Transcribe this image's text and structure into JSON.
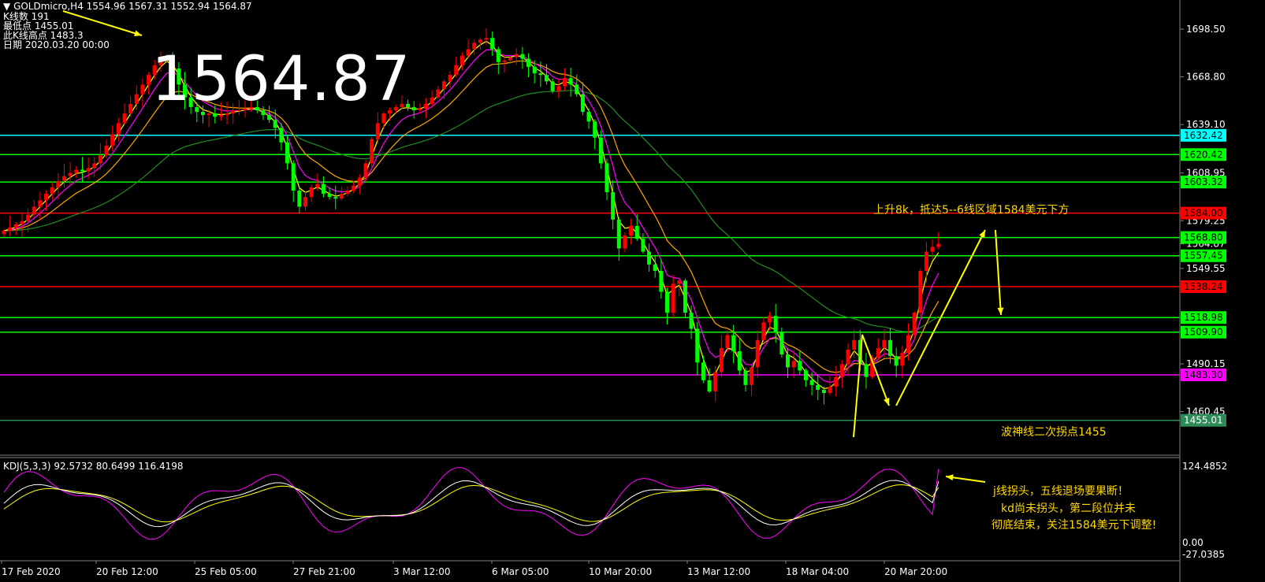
{
  "header": {
    "symbol_line": "GOLDmicro,H4  1554.96 1567.31 1552.94 1564.87",
    "info_lines": [
      "K线数  191",
      "最低点 1455.01",
      "此K线高点 1483.3",
      "日期 2020.03.20 00:00"
    ]
  },
  "big_price": "1564.87",
  "annotations": {
    "upper_note": "上升8k，抵达5--6线区域1584美元下方",
    "lower_note": "波神线二次拐点1455",
    "kdj_notes": [
      "j线拐头，五线退场要果断！",
      "kd尚未拐头，第二段位并未",
      "彻底结束，关注1584美元下调整!"
    ]
  },
  "kdj_header": "KDJ(5,3,3) 92.5732 80.6499 116.4198",
  "price_axis": {
    "ticks": [
      "1698.50",
      "1668.80",
      "1639.10",
      "1608.95",
      "1579.25",
      "1564.87",
      "1549.55",
      "1490.15",
      "1460.45"
    ],
    "levels": [
      {
        "label": "1632.42",
        "color": "#00ffff"
      },
      {
        "label": "1620.42",
        "color": "#00ff00"
      },
      {
        "label": "1603.32",
        "color": "#00ff00"
      },
      {
        "label": "1584.00",
        "color": "#ff0000"
      },
      {
        "label": "1568.80",
        "color": "#00ff00"
      },
      {
        "label": "1557.45",
        "color": "#00ff00"
      },
      {
        "label": "1538.24",
        "color": "#ff0000"
      },
      {
        "label": "1518.98",
        "color": "#00ff00"
      },
      {
        "label": "1509.90",
        "color": "#00ff00"
      },
      {
        "label": "1483.30",
        "color": "#ff00ff"
      },
      {
        "label": "1455.01",
        "color": "#2e8b57"
      }
    ]
  },
  "kdj_axis": {
    "ticks": [
      "124.4852",
      "0.00",
      "-27.0385"
    ]
  },
  "time_axis": {
    "ticks": [
      "17 Feb 2020",
      "20 Feb 12:00",
      "25 Feb 05:00",
      "27 Feb 21:00",
      "3 Mar 12:00",
      "6 Mar 05:00",
      "10 Mar 20:00",
      "13 Mar 12:00",
      "18 Mar 04:00",
      "20 Mar 20:00"
    ]
  },
  "chart_data": {
    "type": "candlestick",
    "title": "GOLDmicro,H4",
    "ylim": [
      1451,
      1712
    ],
    "colors": {
      "up": "#ff0000",
      "down": "#00ff00",
      "ema_fast": "#ffff00",
      "ema_mid": "#ff00ff",
      "ema_slow": "#ffa500",
      "ma_long": "#228b22"
    },
    "close": [
      1573,
      1575,
      1577,
      1579,
      1583,
      1588,
      1592,
      1596,
      1600,
      1604,
      1607,
      1609,
      1611,
      1610,
      1612,
      1615,
      1620,
      1626,
      1633,
      1640,
      1646,
      1652,
      1658,
      1664,
      1670,
      1676,
      1680,
      1682,
      1674,
      1664,
      1656,
      1650,
      1647,
      1645,
      1646,
      1644,
      1645,
      1646,
      1648,
      1648,
      1649,
      1650,
      1648,
      1645,
      1642,
      1637,
      1628,
      1615,
      1598,
      1588,
      1594,
      1600,
      1602,
      1596,
      1594,
      1593,
      1596,
      1598,
      1601,
      1606,
      1615,
      1630,
      1640,
      1646,
      1648,
      1650,
      1652,
      1650,
      1648,
      1649,
      1652,
      1656,
      1661,
      1666,
      1670,
      1676,
      1682,
      1686,
      1690,
      1692,
      1693,
      1686,
      1678,
      1679,
      1681,
      1683,
      1680,
      1675,
      1671,
      1670,
      1666,
      1660,
      1663,
      1668,
      1664,
      1658,
      1647,
      1641,
      1631,
      1615,
      1597,
      1580,
      1562,
      1570,
      1576,
      1568,
      1560,
      1552,
      1548,
      1535,
      1522,
      1540,
      1542,
      1522,
      1512,
      1491,
      1480,
      1473,
      1485,
      1500,
      1508,
      1498,
      1486,
      1477,
      1488,
      1505,
      1516,
      1520,
      1510,
      1496,
      1488,
      1492,
      1486,
      1480,
      1477,
      1474,
      1472,
      1476,
      1482,
      1490,
      1499,
      1505,
      1490,
      1482,
      1494,
      1500,
      1505,
      1495,
      1489,
      1497,
      1508,
      1522,
      1548,
      1560,
      1563,
      1564.87
    ],
    "series": [
      {
        "name": "KDJ(5,3,3)",
        "values": [
          92.5732,
          80.6499,
          116.4198
        ]
      }
    ]
  }
}
